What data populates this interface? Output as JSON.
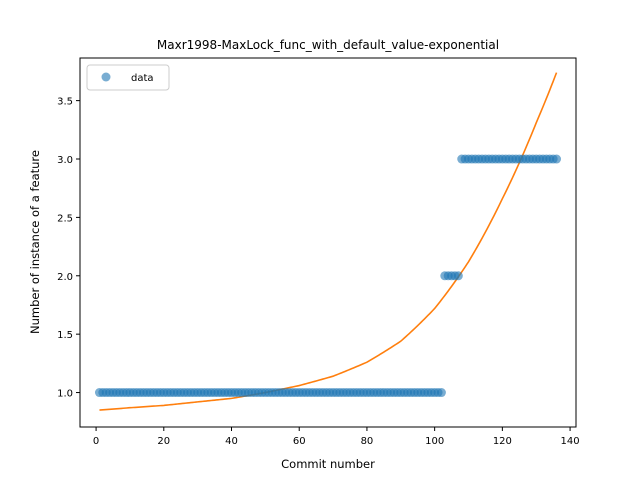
{
  "chart_data": {
    "type": "scatter",
    "title": "Maxr1998-MaxLock_func_with_default_value-exponential",
    "xlabel": "Commit number",
    "ylabel": "Number of instance of a feature",
    "xlim": [
      -4.75,
      141.75
    ],
    "ylim": [
      0.705,
      3.865
    ],
    "xticks": [
      0,
      20,
      40,
      60,
      80,
      100,
      120,
      140
    ],
    "xtick_labels": [
      "0",
      "20",
      "40",
      "60",
      "80",
      "100",
      "120",
      "140"
    ],
    "yticks": [
      1.0,
      1.5,
      2.0,
      2.5,
      3.0,
      3.5
    ],
    "ytick_labels": [
      "1.0",
      "1.5",
      "2.0",
      "2.5",
      "3.0",
      "3.5"
    ],
    "legend": {
      "position": "top-left",
      "entries": [
        "data"
      ]
    },
    "grid": false,
    "colors": {
      "data": "#1f77b4",
      "fit": "#ff7f0e"
    },
    "series": [
      {
        "name": "data",
        "kind": "points",
        "segments": [
          {
            "x_from": 1,
            "x_to": 102,
            "y": 1
          },
          {
            "x_from": 103,
            "x_to": 107,
            "y": 2
          },
          {
            "x_from": 108,
            "x_to": 136,
            "y": 3
          }
        ]
      },
      {
        "kind": "line",
        "x": [
          1,
          10,
          20,
          30,
          40,
          50,
          60,
          70,
          80,
          90,
          100,
          110,
          120,
          130,
          136
        ],
        "y": [
          0.85,
          0.87,
          0.89,
          0.92,
          0.95,
          1.0,
          1.06,
          1.14,
          1.26,
          1.44,
          1.72,
          2.12,
          2.66,
          3.31,
          3.74
        ]
      }
    ]
  }
}
